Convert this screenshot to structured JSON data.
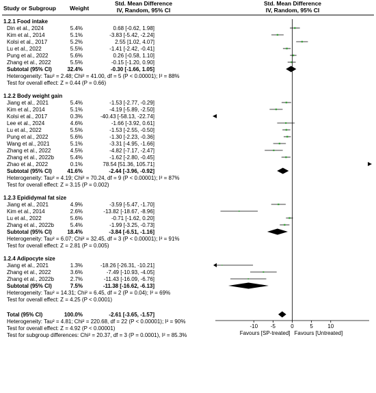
{
  "header": {
    "left_col1": "Study or Subgroup",
    "left_col2": "Weight",
    "left_title_line1": "Std. Mean Difference",
    "left_title_line2": "IV, Random, 95% CI",
    "right_title_line1": "Std. Mean Difference",
    "right_title_line2": "IV, Random, 95% CI"
  },
  "chart_data": {
    "type": "forest",
    "effect_measure": "Std. Mean Difference",
    "model": "IV, Random, 95% CI",
    "xlim": [
      -20,
      20
    ],
    "x_ticks": [
      "-10",
      "-5",
      "0",
      "5",
      "10"
    ],
    "x_tick_values": [
      -10,
      -5,
      0,
      5,
      10
    ],
    "favours_left": "Favours [SP-treated]",
    "favours_right": "Favours [Untreated]",
    "groups": [
      {
        "title": "1.2.1 Food intake",
        "studies": [
          {
            "name": "Din et al., 2024",
            "weight_label": "5.4%",
            "weight": 5.4,
            "ci_text": "0.68 [-0.62, 1.98]",
            "est": 0.68,
            "lo": -0.62,
            "hi": 1.98
          },
          {
            "name": "Kim et al., 2014",
            "weight_label": "5.1%",
            "weight": 5.1,
            "ci_text": "-3.83 [-5.42, -2.24]",
            "est": -3.83,
            "lo": -5.42,
            "hi": -2.24
          },
          {
            "name": "Kolsi et al., 2017",
            "weight_label": "5.2%",
            "weight": 5.2,
            "ci_text": "2.55 [1.02, 4.07]",
            "est": 2.55,
            "lo": 1.02,
            "hi": 4.07
          },
          {
            "name": "Lu et al., 2022",
            "weight_label": "5.5%",
            "weight": 5.5,
            "ci_text": "-1.41 [-2.42, -0.41]",
            "est": -1.41,
            "lo": -2.42,
            "hi": -0.41
          },
          {
            "name": "Pung et al., 2022",
            "weight_label": "5.6%",
            "weight": 5.6,
            "ci_text": "0.26 [-0.58, 1.10]",
            "est": 0.26,
            "lo": -0.58,
            "hi": 1.1
          },
          {
            "name": "Zhang et al., 2022",
            "weight_label": "5.5%",
            "weight": 5.5,
            "ci_text": "-0.15 [-1.20, 0.90]",
            "est": -0.15,
            "lo": -1.2,
            "hi": 0.9
          }
        ],
        "subtotal": {
          "label": "Subtotal (95% CI)",
          "weight_label": "32.4%",
          "ci_text": "-0.30 [-1.66, 1.05]",
          "est": -0.3,
          "lo": -1.66,
          "hi": 1.05
        },
        "heterogeneity": "Heterogeneity: Tau² = 2.48; Chi² = 41.00, df = 5 (P < 0.00001); I² = 88%",
        "overall_effect": "Test for overall effect: Z = 0.44 (P = 0.66)"
      },
      {
        "title": "1.2.2 Body weight gain",
        "studies": [
          {
            "name": "Jiang et al., 2021",
            "weight_label": "5.4%",
            "weight": 5.4,
            "ci_text": "-1.53 [-2.77, -0.29]",
            "est": -1.53,
            "lo": -2.77,
            "hi": -0.29
          },
          {
            "name": "Kim et al., 2014",
            "weight_label": "5.1%",
            "weight": 5.1,
            "ci_text": "-4.19 [-5.89, -2.50]",
            "est": -4.19,
            "lo": -5.89,
            "hi": -2.5
          },
          {
            "name": "Kolsi et al., 2017",
            "weight_label": "0.3%",
            "weight": 0.3,
            "ci_text": "-40.43 [-58.13, -22.74]",
            "est": -40.43,
            "lo": -58.13,
            "hi": -22.74
          },
          {
            "name": "Lee et al., 2024",
            "weight_label": "4.6%",
            "weight": 4.6,
            "ci_text": "-1.66 [-3.92, 0.61]",
            "est": -1.66,
            "lo": -3.92,
            "hi": 0.61
          },
          {
            "name": "Lu et al., 2022",
            "weight_label": "5.5%",
            "weight": 5.5,
            "ci_text": "-1.53 [-2.55, -0.50]",
            "est": -1.53,
            "lo": -2.55,
            "hi": -0.5
          },
          {
            "name": "Pung et al., 2022",
            "weight_label": "5.6%",
            "weight": 5.6,
            "ci_text": "-1.30 [-2.23, -0.36]",
            "est": -1.3,
            "lo": -2.23,
            "hi": -0.36
          },
          {
            "name": "Wang et al., 2021",
            "weight_label": "5.1%",
            "weight": 5.1,
            "ci_text": "-3.31 [-4.95, -1.66]",
            "est": -3.31,
            "lo": -4.95,
            "hi": -1.66
          },
          {
            "name": "Zhang et al., 2022",
            "weight_label": "4.5%",
            "weight": 4.5,
            "ci_text": "-4.82 [-7.17, -2.47]",
            "est": -4.82,
            "lo": -7.17,
            "hi": -2.47
          },
          {
            "name": "Zhang et al., 2022b",
            "weight_label": "5.4%",
            "weight": 5.4,
            "ci_text": "-1.62 [-2.80, -0.45]",
            "est": -1.62,
            "lo": -2.8,
            "hi": -0.45
          },
          {
            "name": "Zhao et al., 2022",
            "weight_label": "0.1%",
            "weight": 0.1,
            "ci_text": "78.54 [51.36, 105.71]",
            "est": 78.54,
            "lo": 51.36,
            "hi": 105.71
          }
        ],
        "subtotal": {
          "label": "Subtotal (95% CI)",
          "weight_label": "41.6%",
          "ci_text": "-2.44 [-3.96, -0.92]",
          "est": -2.44,
          "lo": -3.96,
          "hi": -0.92
        },
        "heterogeneity": "Heterogeneity: Tau² = 4.19; Chi² = 70.24, df = 9 (P < 0.00001); I² = 87%",
        "overall_effect": "Test for overall effect: Z = 3.15 (P = 0.002)"
      },
      {
        "title": "1.2.3 Epididymal fat size",
        "studies": [
          {
            "name": "Jiang et al., 2021",
            "weight_label": "4.9%",
            "weight": 4.9,
            "ci_text": "-3.59 [-5.47, -1.70]",
            "est": -3.59,
            "lo": -5.47,
            "hi": -1.7
          },
          {
            "name": "Kim et al., 2014",
            "weight_label": "2.6%",
            "weight": 2.6,
            "ci_text": "-13.82 [-18.67, -8.96]",
            "est": -13.82,
            "lo": -18.67,
            "hi": -8.96
          },
          {
            "name": "Lu et al., 2022",
            "weight_label": "5.6%",
            "weight": 5.6,
            "ci_text": "-0.71 [-1.62, 0.20]",
            "est": -0.71,
            "lo": -1.62,
            "hi": 0.2
          },
          {
            "name": "Zhang et al., 2022b",
            "weight_label": "5.4%",
            "weight": 5.4,
            "ci_text": "-1.99 [-3.25, -0.73]",
            "est": -1.99,
            "lo": -3.25,
            "hi": -0.73
          }
        ],
        "subtotal": {
          "label": "Subtotal (95% CI)",
          "weight_label": "18.4%",
          "ci_text": "-3.84 [-6.51, -1.16]",
          "est": -3.84,
          "lo": -6.51,
          "hi": -1.16
        },
        "heterogeneity": "Heterogeneity: Tau² = 6.07; Chi² = 32.45, df = 3 (P < 0.00001); I² = 91%",
        "overall_effect": "Test for overall effect: Z = 2.81 (P = 0.005)"
      },
      {
        "title": "1.2.4 Adipocyte size",
        "studies": [
          {
            "name": "Jiang et al., 2021",
            "weight_label": "1.3%",
            "weight": 1.3,
            "ci_text": "-18.26 [-26.31, -10.21]",
            "est": -18.26,
            "lo": -26.31,
            "hi": -10.21
          },
          {
            "name": "Zhang et al., 2022",
            "weight_label": "3.6%",
            "weight": 3.6,
            "ci_text": "-7.49 [-10.93, -4.05]",
            "est": -7.49,
            "lo": -10.93,
            "hi": -4.05
          },
          {
            "name": "Zhang et al., 2022b",
            "weight_label": "2.7%",
            "weight": 2.7,
            "ci_text": "-11.43 [-16.09, -6.76]",
            "est": -11.43,
            "lo": -16.09,
            "hi": -6.76
          }
        ],
        "subtotal": {
          "label": "Subtotal (95% CI)",
          "weight_label": "7.5%",
          "ci_text": "-11.38 [-16.62, -6.13]",
          "est": -11.38,
          "lo": -16.62,
          "hi": -6.13
        },
        "heterogeneity": "Heterogeneity: Tau² = 14.31; Chi² = 6.45, df = 2 (P = 0.04); I² = 69%",
        "overall_effect": "Test for overall effect: Z = 4.25 (P < 0.0001)"
      }
    ],
    "total": {
      "label": "Total (95% CI)",
      "weight_label": "100.0%",
      "ci_text": "-2.61 [-3.65, -1.57]",
      "est": -2.61,
      "lo": -3.65,
      "hi": -1.57
    },
    "total_heterogeneity": "Heterogeneity: Tau² = 4.81; Chi² = 220.68, df = 22 (P < 0.00001); I² = 90%",
    "total_overall_effect": "Test for overall effect: Z = 4.92 (P < 0.00001)",
    "subgroup_differences": "Test for subgroup differences: Chi² = 20.37, df = 3 (P = 0.0001), I² = 85.3%",
    "colors": {
      "study_marker": "#3aa13a",
      "ci_line": "#000000",
      "diamond": "#000000",
      "axis": "#000000"
    }
  }
}
